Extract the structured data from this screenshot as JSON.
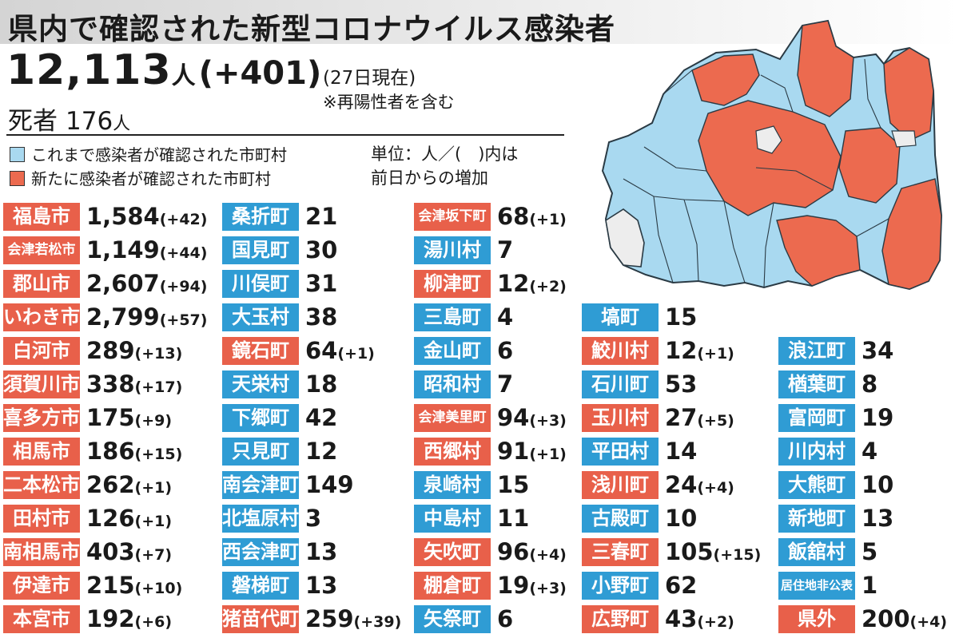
{
  "header": {
    "title": "県内で確認された新型コロナウイルス感染者"
  },
  "summary": {
    "total": "12,113",
    "unit": "人",
    "increase": "(+401)",
    "as_of": "(27日現在)",
    "note": "※再陽性者を含む",
    "deaths_label": "死者",
    "deaths_value": "176",
    "deaths_unit": "人"
  },
  "legend": {
    "existing": "これまで感染者が確認された市町村",
    "new": "新たに感染者が確認された市町村",
    "unit_line1": "単位：人／(　)内は",
    "unit_line2": "前日からの増加"
  },
  "colors": {
    "existing": "#2f9cd4",
    "new": "#e8604a",
    "map_existing": "#a9d9f0",
    "map_new": "#ec6a4f",
    "map_none": "#ededed"
  },
  "columns": [
    [
      {
        "name": "福島市",
        "value": "1,584",
        "diff": "(+42)",
        "status": "new"
      },
      {
        "name": "会津若松市",
        "value": "1,149",
        "diff": "(+44)",
        "status": "new"
      },
      {
        "name": "郡山市",
        "value": "2,607",
        "diff": "(+94)",
        "status": "new"
      },
      {
        "name": "いわき市",
        "value": "2,799",
        "diff": "(+57)",
        "status": "new"
      },
      {
        "name": "白河市",
        "value": "289",
        "diff": "(+13)",
        "status": "new"
      },
      {
        "name": "須賀川市",
        "value": "338",
        "diff": "(+17)",
        "status": "new"
      },
      {
        "name": "喜多方市",
        "value": "175",
        "diff": "(+9)",
        "status": "new"
      },
      {
        "name": "相馬市",
        "value": "186",
        "diff": "(+15)",
        "status": "new"
      },
      {
        "name": "二本松市",
        "value": "262",
        "diff": "(+1)",
        "status": "new"
      },
      {
        "name": "田村市",
        "value": "126",
        "diff": "(+1)",
        "status": "new"
      },
      {
        "name": "南相馬市",
        "value": "403",
        "diff": "(+7)",
        "status": "new"
      },
      {
        "name": "伊達市",
        "value": "215",
        "diff": "(+10)",
        "status": "new"
      },
      {
        "name": "本宮市",
        "value": "192",
        "diff": "(+6)",
        "status": "new"
      }
    ],
    [
      {
        "name": "桑折町",
        "value": "21",
        "diff": "",
        "status": "existing"
      },
      {
        "name": "国見町",
        "value": "30",
        "diff": "",
        "status": "existing"
      },
      {
        "name": "川俣町",
        "value": "31",
        "diff": "",
        "status": "existing"
      },
      {
        "name": "大玉村",
        "value": "38",
        "diff": "",
        "status": "existing"
      },
      {
        "name": "鏡石町",
        "value": "64",
        "diff": "(+1)",
        "status": "new"
      },
      {
        "name": "天栄村",
        "value": "18",
        "diff": "",
        "status": "existing"
      },
      {
        "name": "下郷町",
        "value": "42",
        "diff": "",
        "status": "existing"
      },
      {
        "name": "只見町",
        "value": "12",
        "diff": "",
        "status": "existing"
      },
      {
        "name": "南会津町",
        "value": "149",
        "diff": "",
        "status": "existing"
      },
      {
        "name": "北塩原村",
        "value": "3",
        "diff": "",
        "status": "existing"
      },
      {
        "name": "西会津町",
        "value": "13",
        "diff": "",
        "status": "existing"
      },
      {
        "name": "磐梯町",
        "value": "13",
        "diff": "",
        "status": "existing"
      },
      {
        "name": "猪苗代町",
        "value": "259",
        "diff": "(+39)",
        "status": "new"
      }
    ],
    [
      {
        "name": "会津坂下町",
        "value": "68",
        "diff": "(+1)",
        "status": "new"
      },
      {
        "name": "湯川村",
        "value": "7",
        "diff": "",
        "status": "existing"
      },
      {
        "name": "柳津町",
        "value": "12",
        "diff": "(+2)",
        "status": "new"
      },
      {
        "name": "三島町",
        "value": "4",
        "diff": "",
        "status": "existing"
      },
      {
        "name": "金山町",
        "value": "6",
        "diff": "",
        "status": "existing"
      },
      {
        "name": "昭和村",
        "value": "7",
        "diff": "",
        "status": "existing"
      },
      {
        "name": "会津美里町",
        "value": "94",
        "diff": "(+3)",
        "status": "new"
      },
      {
        "name": "西郷村",
        "value": "91",
        "diff": "(+1)",
        "status": "new"
      },
      {
        "name": "泉崎村",
        "value": "15",
        "diff": "",
        "status": "existing"
      },
      {
        "name": "中島村",
        "value": "11",
        "diff": "",
        "status": "existing"
      },
      {
        "name": "矢吹町",
        "value": "96",
        "diff": "(+4)",
        "status": "new"
      },
      {
        "name": "棚倉町",
        "value": "19",
        "diff": "(+3)",
        "status": "new"
      },
      {
        "name": "矢祭町",
        "value": "6",
        "diff": "",
        "status": "existing"
      }
    ],
    [
      {
        "name": "塙町",
        "value": "15",
        "diff": "",
        "status": "existing"
      },
      {
        "name": "鮫川村",
        "value": "12",
        "diff": "(+1)",
        "status": "new"
      },
      {
        "name": "石川町",
        "value": "53",
        "diff": "",
        "status": "existing"
      },
      {
        "name": "玉川村",
        "value": "27",
        "diff": "(+5)",
        "status": "new"
      },
      {
        "name": "平田村",
        "value": "14",
        "diff": "",
        "status": "existing"
      },
      {
        "name": "浅川町",
        "value": "24",
        "diff": "(+4)",
        "status": "new"
      },
      {
        "name": "古殿町",
        "value": "10",
        "diff": "",
        "status": "existing"
      },
      {
        "name": "三春町",
        "value": "105",
        "diff": "(+15)",
        "status": "new"
      },
      {
        "name": "小野町",
        "value": "62",
        "diff": "",
        "status": "existing"
      },
      {
        "name": "広野町",
        "value": "43",
        "diff": "(+2)",
        "status": "new"
      }
    ],
    [
      {
        "name": "浪江町",
        "value": "34",
        "diff": "",
        "status": "existing"
      },
      {
        "name": "楢葉町",
        "value": "8",
        "diff": "",
        "status": "existing"
      },
      {
        "name": "富岡町",
        "value": "19",
        "diff": "",
        "status": "existing"
      },
      {
        "name": "川内村",
        "value": "4",
        "diff": "",
        "status": "existing"
      },
      {
        "name": "大熊町",
        "value": "10",
        "diff": "",
        "status": "existing"
      },
      {
        "name": "新地町",
        "value": "13",
        "diff": "",
        "status": "existing"
      },
      {
        "name": "飯舘村",
        "value": "5",
        "diff": "",
        "status": "existing"
      },
      {
        "name": "居住地非公表",
        "value": "1",
        "diff": "",
        "status": "existing"
      },
      {
        "name": "県外",
        "value": "200",
        "diff": "(+4)",
        "status": "new"
      }
    ]
  ]
}
